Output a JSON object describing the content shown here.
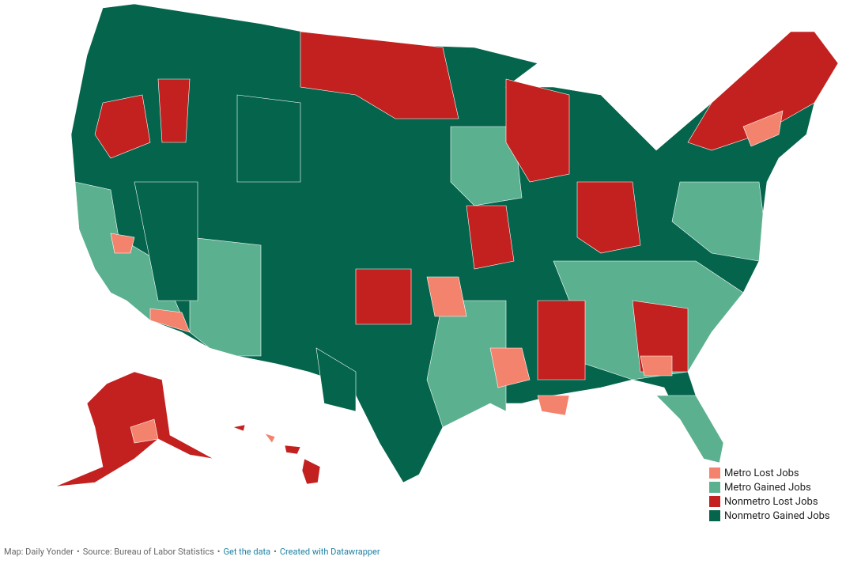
{
  "legend": [
    {
      "label": "Metro Lost Jobs",
      "color": "#f4836e"
    },
    {
      "label": "Metro Gained Jobs",
      "color": "#5bb08f"
    },
    {
      "label": "Nonmetro Lost Jobs",
      "color": "#c3211f"
    },
    {
      "label": "Nonmetro Gained Jobs",
      "color": "#04654c"
    }
  ],
  "footer": {
    "separator": "•",
    "items": [
      {
        "text": "Map: Daily Yonder",
        "link": false
      },
      {
        "text": "Source: Bureau of Labor Statistics",
        "link": false
      },
      {
        "text": "Get the data",
        "link": true
      },
      {
        "text": "Created with Datawrapper",
        "link": true
      }
    ]
  }
}
